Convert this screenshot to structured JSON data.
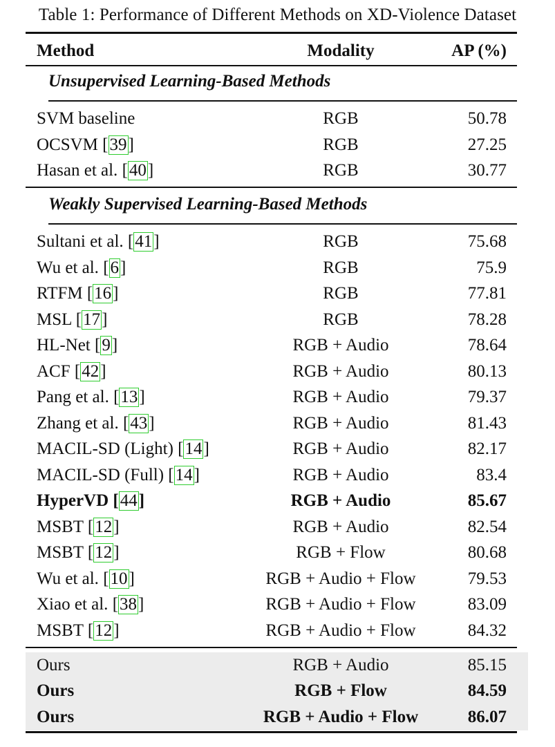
{
  "caption": "Table 1: Performance of Different Methods on XD-Violence Dataset",
  "header": {
    "method": "Method",
    "modality": "Modality",
    "ap": "AP (%)"
  },
  "sections": [
    {
      "title": "Unsupervised Learning-Based Methods",
      "rows": [
        {
          "method": "SVM baseline",
          "cite": "",
          "modality": "RGB",
          "ap": "50.78"
        },
        {
          "method": "OCSVM",
          "cite": "39",
          "modality": "RGB",
          "ap": "27.25"
        },
        {
          "method": "Hasan et al.",
          "cite": "40",
          "modality": "RGB",
          "ap": "30.77"
        }
      ]
    },
    {
      "title": "Weakly Supervised Learning-Based Methods",
      "rows": [
        {
          "method": "Sultani et al.",
          "cite": "41",
          "modality": "RGB",
          "ap": "75.68"
        },
        {
          "method": "Wu et al.",
          "cite": "6",
          "modality": "RGB",
          "ap": "75.9"
        },
        {
          "method": "RTFM",
          "cite": "16",
          "modality": "RGB",
          "ap": "77.81"
        },
        {
          "method": "MSL",
          "cite": "17",
          "modality": "RGB",
          "ap": "78.28"
        },
        {
          "method": "HL-Net",
          "cite": "9",
          "modality": "RGB + Audio",
          "ap": "78.64"
        },
        {
          "method": "ACF",
          "cite": "42",
          "modality": "RGB + Audio",
          "ap": "80.13"
        },
        {
          "method": "Pang et al.",
          "cite": "13",
          "modality": "RGB + Audio",
          "ap": "79.37"
        },
        {
          "method": "Zhang et al.",
          "cite": "43",
          "modality": "RGB + Audio",
          "ap": "81.43"
        },
        {
          "method": "MACIL-SD (Light)",
          "cite": "14",
          "modality": "RGB + Audio",
          "ap": "82.17"
        },
        {
          "method": "MACIL-SD (Full)",
          "cite": "14",
          "modality": "RGB + Audio",
          "ap": "83.4"
        },
        {
          "method": "HyperVD",
          "cite": "44",
          "modality": "RGB + Audio",
          "ap": "85.67",
          "bold": true
        },
        {
          "method": "MSBT",
          "cite": "12",
          "modality": "RGB + Audio",
          "ap": "82.54"
        },
        {
          "method": "MSBT",
          "cite": "12",
          "modality": "RGB + Flow",
          "ap": "80.68"
        },
        {
          "method": "Wu et al.",
          "cite": "10",
          "modality": "RGB + Audio + Flow",
          "ap": "79.53"
        },
        {
          "method": "Xiao et al.",
          "cite": "38",
          "modality": "RGB + Audio + Flow",
          "ap": "83.09"
        },
        {
          "method": "MSBT",
          "cite": "12",
          "modality": "RGB + Audio + Flow",
          "ap": "84.32"
        }
      ]
    }
  ],
  "ours": [
    {
      "method": "Ours",
      "cite": "",
      "modality": "RGB + Audio",
      "ap": "85.15"
    },
    {
      "method": "Ours",
      "cite": "",
      "modality": "RGB + Flow",
      "ap": "84.59",
      "bold": true
    },
    {
      "method": "Ours",
      "cite": "",
      "modality": "RGB + Audio + Flow",
      "ap": "86.07",
      "bold": true
    }
  ]
}
